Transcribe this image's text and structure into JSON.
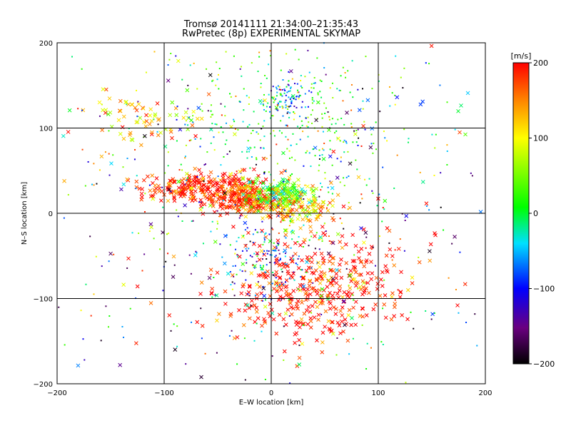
{
  "chart_data": {
    "type": "scatter",
    "title_line1": "Tromsø 20141111 21:34:00–21:35:43",
    "title_line2": "RwPretec (8p) EXPERIMENTAL SKYMAP",
    "xlabel": "E–W location [km]",
    "ylabel": "N–S location [km]",
    "xlim": [
      -200,
      200
    ],
    "ylim": [
      -200,
      200
    ],
    "x_ticks": [
      -200,
      -100,
      0,
      100,
      200
    ],
    "y_ticks": [
      -200,
      -100,
      0,
      100,
      200
    ],
    "grid": true,
    "markers": [
      "x",
      "dot"
    ],
    "colorbar": {
      "label": "[m/s]",
      "range": [
        -200,
        200
      ],
      "ticks": [
        200,
        100,
        0,
        -100,
        -200
      ],
      "colormap": "black-purple-blue-cyan-green-yellow-red"
    },
    "clusters": [
      {
        "center": [
          -60,
          30
        ],
        "spread": [
          28,
          9
        ],
        "velocity": 190,
        "count": 260,
        "marker": "x"
      },
      {
        "center": [
          -25,
          15
        ],
        "spread": [
          18,
          8
        ],
        "velocity": 180,
        "count": 220,
        "marker": "x"
      },
      {
        "center": [
          10,
          22
        ],
        "spread": [
          14,
          8
        ],
        "velocity": 30,
        "count": 160,
        "marker": "x"
      },
      {
        "center": [
          25,
          5
        ],
        "spread": [
          20,
          10
        ],
        "velocity": 130,
        "count": 120,
        "marker": "x"
      },
      {
        "center": [
          40,
          -85
        ],
        "spread": [
          45,
          30
        ],
        "velocity": 195,
        "count": 420,
        "marker": "x"
      },
      {
        "center": [
          0,
          -55
        ],
        "spread": [
          18,
          18
        ],
        "velocity": -80,
        "count": 110,
        "marker": "dot"
      },
      {
        "center": [
          15,
          135
        ],
        "spread": [
          15,
          12
        ],
        "velocity": -60,
        "count": 90,
        "marker": "dot"
      },
      {
        "center": [
          20,
          110
        ],
        "spread": [
          55,
          40
        ],
        "velocity": 20,
        "count": 260,
        "marker": "dot"
      },
      {
        "center": [
          -120,
          110
        ],
        "spread": [
          25,
          15
        ],
        "velocity": 110,
        "count": 70,
        "marker": "x"
      },
      {
        "center": [
          0,
          0
        ],
        "spread": [
          110,
          100
        ],
        "velocity": 0,
        "count": 520,
        "marker": "dot"
      },
      {
        "center": [
          0,
          0
        ],
        "spread": [
          120,
          110
        ],
        "velocity": 0,
        "count": 180,
        "marker": "x"
      }
    ]
  }
}
